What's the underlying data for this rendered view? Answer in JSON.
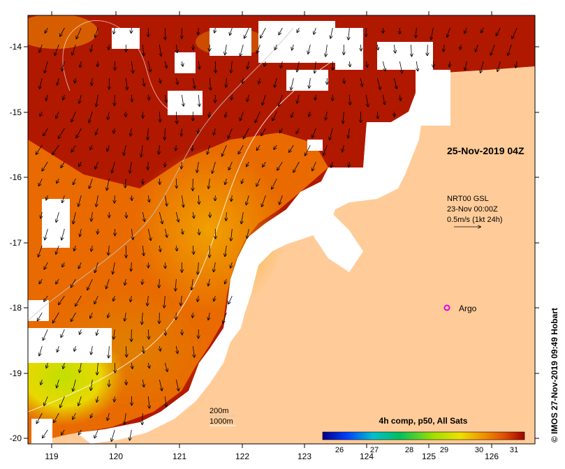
{
  "map": {
    "date_label": "25-Nov-2019 04Z",
    "current": {
      "source": "NRT00 GSL",
      "time": "23-Nov 00:00Z",
      "scale": "0.5m/s (1kt 24h)"
    },
    "argo_label": "Argo",
    "isobaths": [
      "200m",
      "1000m"
    ],
    "colorbar": {
      "title": "4h comp, p50, All Sats",
      "ticks": [
        "26",
        "27",
        "28",
        "29",
        "30",
        "31"
      ],
      "colors": [
        "#00008a",
        "#0040ff",
        "#00c0d0",
        "#00c060",
        "#a0e000",
        "#f0e000",
        "#f09000",
        "#e05000",
        "#a00000"
      ]
    },
    "credit": "© IMOS 27-Nov-2019 09:49 Hobart",
    "x_ticks": [
      "119",
      "120",
      "121",
      "122",
      "123",
      "124",
      "125",
      "126"
    ],
    "y_ticks": [
      "-14",
      "-15",
      "-16",
      "-17",
      "-18",
      "-19",
      "-20"
    ],
    "land_color": "#ffcc99"
  }
}
